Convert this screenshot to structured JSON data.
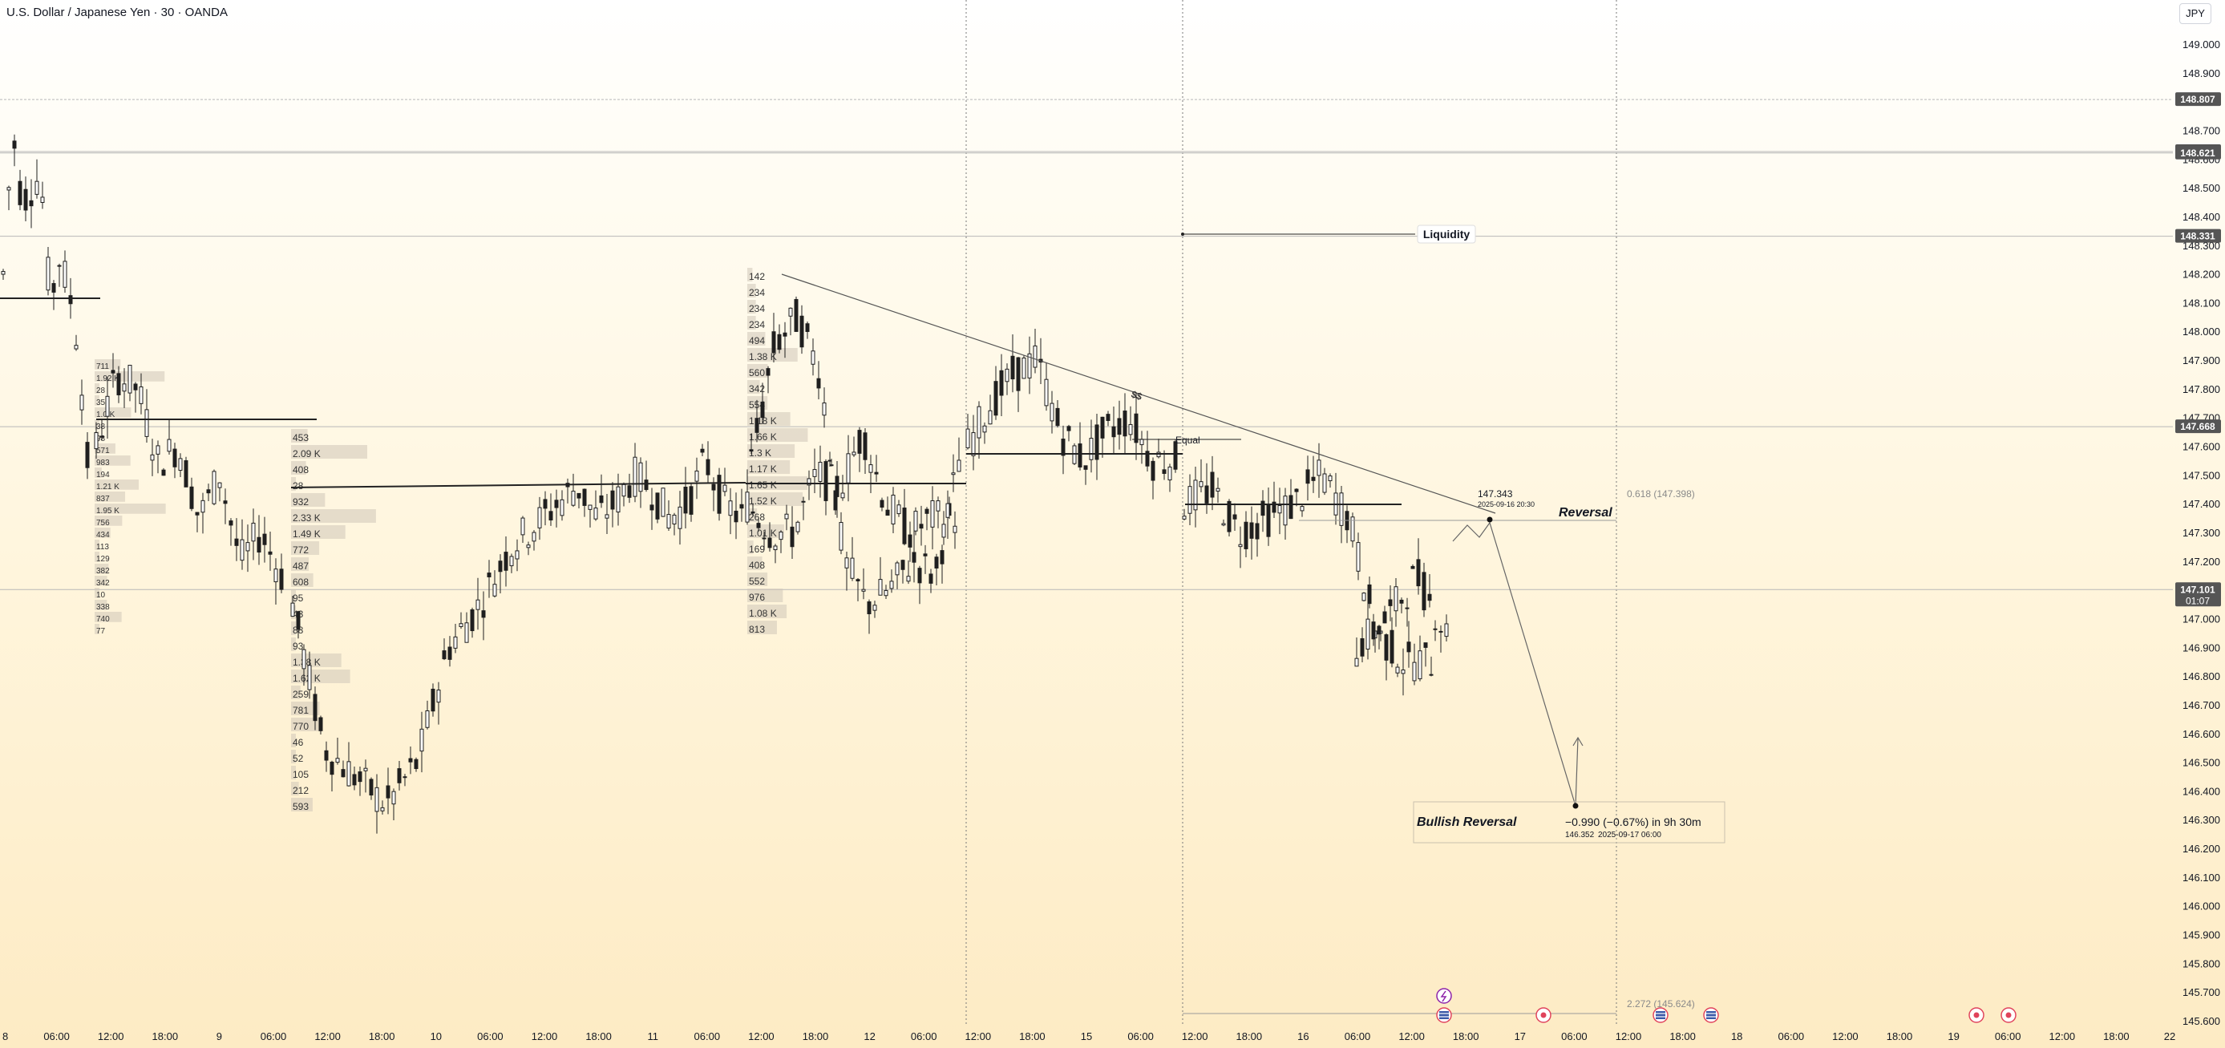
{
  "header": {
    "symbol_title": "U.S. Dollar / Japanese Yen · 30 · OANDA",
    "currency": "JPY"
  },
  "chart_data": {
    "type": "candlestick",
    "y_axis": {
      "range": [
        145.6,
        149.1
      ],
      "ticks": [
        "149.000",
        "148.900",
        "148.800",
        "148.700",
        "148.600",
        "148.500",
        "148.400",
        "148.300",
        "148.200",
        "148.100",
        "148.000",
        "147.900",
        "147.800",
        "147.700",
        "147.600",
        "147.500",
        "147.400",
        "147.300",
        "147.200",
        "147.100",
        "147.000",
        "146.900",
        "146.800",
        "146.700",
        "146.600",
        "146.500",
        "146.400",
        "146.300",
        "146.200",
        "146.100",
        "146.000",
        "145.900",
        "145.800",
        "145.700",
        "145.600"
      ],
      "price_labels": [
        {
          "value": 148.807,
          "text": "148.807"
        },
        {
          "value": 148.626,
          "text": "148.626"
        },
        {
          "value": 148.621,
          "text": "148.621"
        },
        {
          "value": 148.331,
          "text": "148.331"
        },
        {
          "value": 147.668,
          "text": "147.668"
        },
        {
          "value": 147.101,
          "text": "147.101",
          "countdown": "01:07"
        }
      ]
    },
    "x_axis": {
      "labels": [
        "8",
        "06:00",
        "12:00",
        "18:00",
        "9",
        "06:00",
        "12:00",
        "18:00",
        "10",
        "06:00",
        "12:00",
        "18:00",
        "11",
        "06:00",
        "12:00",
        "18:00",
        "12",
        "06:00",
        "12:00",
        "18:00",
        "15",
        "06:00",
        "12:00",
        "18:00",
        "16",
        "06:00",
        "12:00",
        "18:00",
        "17",
        "06:00",
        "12:00",
        "18:00",
        "18",
        "06:00",
        "12:00",
        "18:00",
        "19",
        "06:00",
        "12:00",
        "18:00",
        "22"
      ]
    },
    "candles": {
      "sessions": [
        {
          "points": [
            [
              148.2,
              148.7
            ],
            [
              148.45,
              148.5
            ],
            [
              148.55,
              148.1
            ],
            [
              148.25,
              148.15
            ],
            [
              147.95,
              147.55
            ]
          ]
        },
        {
          "points": [
            [
              147.6,
              147.85
            ],
            [
              147.8,
              147.55
            ],
            [
              147.6,
              147.35
            ],
            [
              147.5,
              147.2
            ],
            [
              147.3,
              147.15
            ]
          ]
        },
        {
          "points": [
            [
              147.05,
              146.55
            ],
            [
              146.45,
              146.35
            ],
            [
              146.5,
              146.9
            ],
            [
              147.05,
              147.25
            ],
            [
              147.35,
              147.45
            ]
          ]
        },
        {
          "points": [
            [
              147.45,
              147.35
            ],
            [
              147.4,
              147.5
            ],
            [
              147.45,
              147.35
            ],
            [
              147.4,
              147.55
            ],
            [
              147.4,
              147.35
            ]
          ]
        },
        {
          "points": [
            [
              147.4,
              147.3
            ],
            [
              147.3,
              147.5
            ],
            [
              147.45,
              147.65
            ],
            [
              147.4,
              147.3
            ],
            [
              147.35,
              147.35
            ]
          ]
        },
        {
          "points": [
            [
              147.55,
              147.95
            ],
            [
              148.05,
              147.85
            ],
            [
              147.2,
              147.05
            ],
            [
              147.1,
              147.2
            ],
            [
              147.15,
              147.55
            ]
          ]
        },
        {
          "points": [
            [
              147.6,
              147.75
            ],
            [
              147.85,
              147.9
            ],
            [
              147.65,
              147.55
            ],
            [
              147.65,
              147.7
            ],
            [
              147.55,
              147.55
            ]
          ]
        },
        {
          "points": [
            [
              147.4,
              147.45
            ],
            [
              147.3,
              147.35
            ],
            [
              147.4,
              147.5
            ],
            [
              147.35,
              146.95
            ],
            [
              146.85,
              146.85
            ]
          ]
        },
        {
          "points": [
            [
              146.9,
              147.0
            ],
            [
              147.15,
              146.95
            ]
          ]
        }
      ]
    },
    "volume_profiles": [
      {
        "values": [
          "711",
          "1.92 K",
          "28",
          "35",
          "1.0 K",
          "38",
          "98",
          "571",
          "983",
          "194",
          "1.21 K",
          "837",
          "1.95 K",
          "756",
          "434",
          "113",
          "129",
          "382",
          "342",
          "10",
          "338",
          "740",
          "77"
        ]
      },
      {
        "values": [
          "453",
          "2.09 K",
          "408",
          "28",
          "932",
          "2.33 K",
          "1.49 K",
          "772",
          "487",
          "608",
          "95",
          "43",
          "88",
          "93",
          "1.38 K",
          "1.62 K",
          "259",
          "781",
          "770",
          "46",
          "52",
          "105",
          "212",
          "593"
        ]
      },
      {
        "values": [
          "142",
          "234",
          "234",
          "234",
          "494",
          "1.38 K",
          "560",
          "342",
          "554",
          "1.18 K",
          "1.66 K",
          "1.3 K",
          "1.17 K",
          "1.65 K",
          "1.52 K",
          "268",
          "1.01 K",
          "169",
          "408",
          "552",
          "976",
          "1.08 K",
          "813"
        ]
      }
    ],
    "annotations": {
      "liquidity": "Liquidity",
      "equal": "Equal",
      "dollar": "$$",
      "reversal": "Reversal",
      "fib_upper": "0.618 (147.398)",
      "fib_lower": "2.272 (145.624)",
      "point_price": "147.343",
      "point_time": "2025-09-16 20:30",
      "bullish_title": "Bullish Reversal",
      "bullish_change": "−0.990 (−0.67%) in 9h 30m",
      "bullish_price": "146.352",
      "bullish_time": "2025-09-17  06:00"
    },
    "levels": [
      148.807,
      148.626,
      148.621,
      148.331,
      147.668,
      147.101
    ],
    "colors": {
      "candle": "#1f1f1f",
      "grid": "#b8b8b8",
      "profile": "#cfc7b8",
      "price_label": "#555555",
      "event_red": "#e0435b",
      "event_purple": "#8e24aa"
    }
  }
}
